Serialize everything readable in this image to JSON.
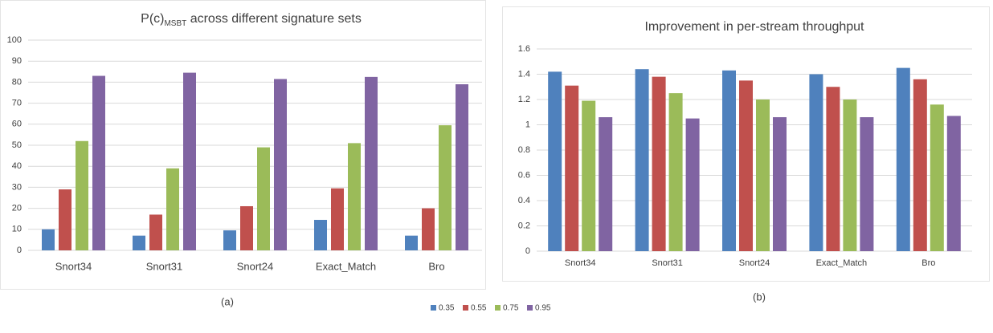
{
  "chart_data": [
    {
      "type": "bar",
      "title": {
        "main": "P(c)",
        "subscript": "MSBT",
        "rest": " across different signature sets"
      },
      "caption": "(a)",
      "categories": [
        "Snort34",
        "Snort31",
        "Snort24",
        "Exact_Match",
        "Bro"
      ],
      "series": [
        {
          "name": "0.35",
          "color": "#4f81bd",
          "values": [
            10,
            7,
            9.5,
            14.5,
            7
          ]
        },
        {
          "name": "0.55",
          "color": "#c0504d",
          "values": [
            29,
            17,
            21,
            29.5,
            20
          ]
        },
        {
          "name": "0.75",
          "color": "#9bbb59",
          "values": [
            52,
            39,
            49,
            51,
            59.5
          ]
        },
        {
          "name": "0.95",
          "color": "#8064a2",
          "values": [
            83,
            84.5,
            81.5,
            82.5,
            79
          ]
        }
      ],
      "ylim": [
        0,
        100
      ],
      "yticks": [
        0,
        10,
        20,
        30,
        40,
        50,
        60,
        70,
        80,
        90,
        100
      ],
      "grid": true,
      "legend": "bottom"
    },
    {
      "type": "bar",
      "title": "Improvement in per-stream throughput",
      "caption": "(b)",
      "categories": [
        "Snort34",
        "Snort31",
        "Snort24",
        "Exact_Match",
        "Bro"
      ],
      "series": [
        {
          "name": "0.35",
          "color": "#4f81bd",
          "values": [
            1.42,
            1.44,
            1.43,
            1.4,
            1.45
          ]
        },
        {
          "name": "0.55",
          "color": "#c0504d",
          "values": [
            1.31,
            1.38,
            1.35,
            1.3,
            1.36
          ]
        },
        {
          "name": "0.75",
          "color": "#9bbb59",
          "values": [
            1.19,
            1.25,
            1.2,
            1.2,
            1.16
          ]
        },
        {
          "name": "0.95",
          "color": "#8064a2",
          "values": [
            1.06,
            1.05,
            1.06,
            1.06,
            1.07
          ]
        }
      ],
      "ylim": [
        0,
        1.6
      ],
      "yticks": [
        0,
        0.2,
        0.4,
        0.6,
        0.8,
        1,
        1.2,
        1.4,
        1.6
      ],
      "grid": true
    }
  ]
}
